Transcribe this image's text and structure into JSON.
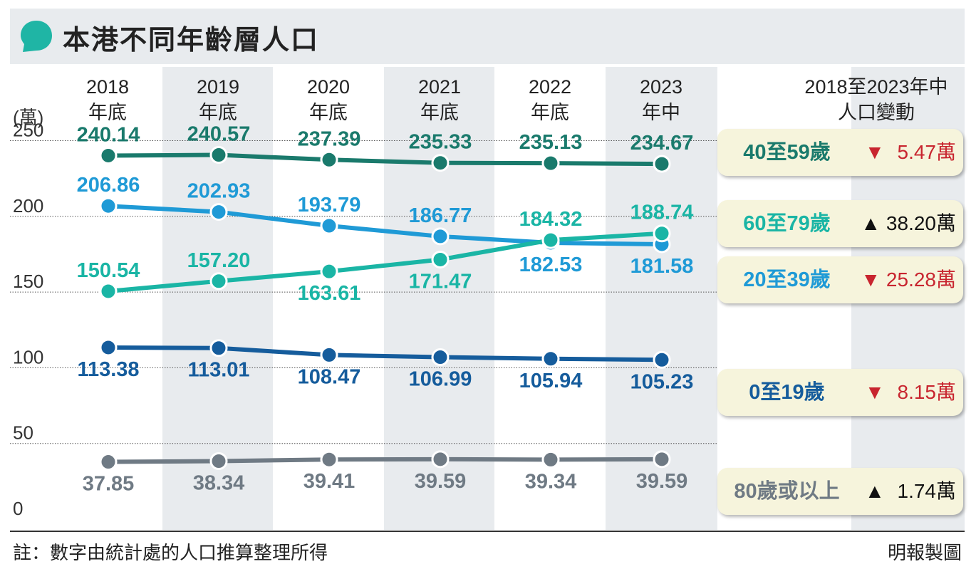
{
  "header": {
    "title": "本港不同年齡層人口"
  },
  "unit_label": "(萬)",
  "change_title": {
    "line1": "2018至2023年中",
    "line2": "人口變動"
  },
  "footnote": "註：數字由統計處的人口推算整理所得",
  "credit": "明報製圖",
  "colors": {
    "40至59歲": "#1a7a6c",
    "60至79歲": "#1ab5a5",
    "20至39歲": "#1f9ad6",
    "0至19歲": "#155c9c",
    "80歲或以上": "#6f7a84",
    "header_icon": "#1fb5a5",
    "down_arrow": "#c8252f"
  },
  "badges": [
    {
      "label": "40至59歲",
      "arrow": "▼",
      "direction": "down",
      "change": "5.47萬",
      "color": "#1a7a6c"
    },
    {
      "label": "60至79歲",
      "arrow": "▲",
      "direction": "up",
      "change": "38.20萬",
      "color": "#1ab5a5"
    },
    {
      "label": "20至39歲",
      "arrow": "▼",
      "direction": "down",
      "change": "25.28萬",
      "color": "#1f9ad6"
    },
    {
      "label": "0至19歲",
      "arrow": "▼",
      "direction": "down",
      "change": "8.15萬",
      "color": "#155c9c"
    },
    {
      "label": "80歲或以上",
      "arrow": "▲",
      "direction": "up",
      "change": "1.74萬",
      "color": "#6f7a84"
    }
  ],
  "chart_data": {
    "type": "line",
    "title": "本港不同年齡層人口",
    "ylabel": "(萬)",
    "ylim": [
      0,
      250
    ],
    "yticks": [
      0,
      50,
      100,
      150,
      200,
      250
    ],
    "grid": true,
    "categories": [
      {
        "line1": "2018",
        "line2": "年底"
      },
      {
        "line1": "2019",
        "line2": "年底"
      },
      {
        "line1": "2020",
        "line2": "年底"
      },
      {
        "line1": "2021",
        "line2": "年底"
      },
      {
        "line1": "2022",
        "line2": "年底"
      },
      {
        "line1": "2023",
        "line2": "年中"
      }
    ],
    "series": [
      {
        "name": "40至59歲",
        "color": "#1a7a6c",
        "values": [
          240.14,
          240.57,
          237.39,
          235.33,
          235.13,
          234.67
        ],
        "labels": [
          "240.14",
          "240.57",
          "237.39",
          "235.33",
          "235.13",
          "234.67"
        ],
        "label_pos": [
          "above",
          "above",
          "above",
          "above",
          "above",
          "above"
        ]
      },
      {
        "name": "20至39歲",
        "color": "#1f9ad6",
        "values": [
          206.86,
          202.93,
          193.79,
          186.77,
          182.53,
          181.58
        ],
        "labels": [
          "206.86",
          "202.93",
          "193.79",
          "186.77",
          "182.53",
          "181.58"
        ],
        "label_pos": [
          "above",
          "above",
          "above",
          "above",
          "below",
          "below"
        ]
      },
      {
        "name": "60至79歲",
        "color": "#1ab5a5",
        "values": [
          150.54,
          157.2,
          163.61,
          171.47,
          184.32,
          188.74
        ],
        "labels": [
          "150.54",
          "157.20",
          "163.61",
          "171.47",
          "184.32",
          "188.74"
        ],
        "label_pos": [
          "above",
          "above",
          "below",
          "below",
          "above",
          "above"
        ]
      },
      {
        "name": "0至19歲",
        "color": "#155c9c",
        "values": [
          113.38,
          113.01,
          108.47,
          106.99,
          105.94,
          105.23
        ],
        "labels": [
          "113.38",
          "113.01",
          "108.47",
          "106.99",
          "105.94",
          "105.23"
        ],
        "label_pos": [
          "below",
          "below",
          "below",
          "below",
          "below",
          "below"
        ]
      },
      {
        "name": "80歲或以上",
        "color": "#6f7a84",
        "values": [
          37.85,
          38.34,
          39.41,
          39.59,
          39.34,
          39.59
        ],
        "labels": [
          "37.85",
          "38.34",
          "39.41",
          "39.59",
          "39.34",
          "39.59"
        ],
        "label_pos": [
          "below",
          "below",
          "below",
          "below",
          "below",
          "below"
        ]
      }
    ]
  }
}
